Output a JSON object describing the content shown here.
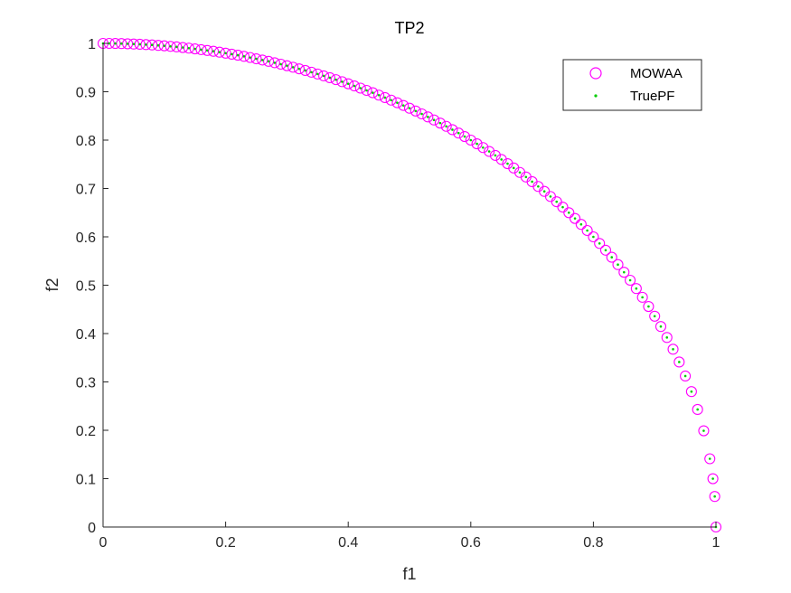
{
  "chart_data": {
    "type": "scatter",
    "title": "TP2",
    "xlabel": "f1",
    "ylabel": "f2",
    "xlim": [
      0,
      1
    ],
    "ylim": [
      0,
      1
    ],
    "xticks": [
      "0",
      "0.2",
      "0.4",
      "0.6",
      "0.8",
      "1"
    ],
    "yticks": [
      "0",
      "0.1",
      "0.2",
      "0.3",
      "0.4",
      "0.5",
      "0.6",
      "0.7",
      "0.8",
      "0.9",
      "1"
    ],
    "grid": false,
    "legend_position": "top-right",
    "series": [
      {
        "name": "MOWAA",
        "marker": "circle-open",
        "color": "#ff00ff",
        "x": [
          0.0,
          0.01,
          0.02,
          0.03,
          0.04,
          0.05,
          0.06,
          0.07,
          0.08,
          0.09,
          0.1,
          0.11,
          0.12,
          0.13,
          0.14,
          0.15,
          0.16,
          0.17,
          0.18,
          0.19,
          0.2,
          0.21,
          0.22,
          0.23,
          0.24,
          0.25,
          0.26,
          0.27,
          0.28,
          0.29,
          0.3,
          0.31,
          0.32,
          0.33,
          0.34,
          0.35,
          0.36,
          0.37,
          0.38,
          0.39,
          0.4,
          0.41,
          0.42,
          0.43,
          0.44,
          0.45,
          0.46,
          0.47,
          0.48,
          0.49,
          0.5,
          0.51,
          0.52,
          0.53,
          0.54,
          0.55,
          0.56,
          0.57,
          0.58,
          0.59,
          0.6,
          0.61,
          0.62,
          0.63,
          0.64,
          0.65,
          0.66,
          0.67,
          0.68,
          0.69,
          0.7,
          0.71,
          0.72,
          0.73,
          0.74,
          0.75,
          0.76,
          0.77,
          0.78,
          0.79,
          0.8,
          0.81,
          0.82,
          0.83,
          0.84,
          0.85,
          0.86,
          0.87,
          0.88,
          0.89,
          0.9,
          0.91,
          0.92,
          0.93,
          0.94,
          0.95,
          0.96,
          0.97,
          0.98,
          0.99,
          0.995,
          0.998,
          1.0
        ],
        "y": [
          1.0,
          1.0,
          0.9998,
          0.9996,
          0.9992,
          0.9987,
          0.9982,
          0.9975,
          0.9968,
          0.9959,
          0.995,
          0.9939,
          0.9928,
          0.9915,
          0.9902,
          0.9887,
          0.9871,
          0.9854,
          0.9837,
          0.9818,
          0.9798,
          0.9777,
          0.9755,
          0.9732,
          0.9708,
          0.9682,
          0.9656,
          0.9629,
          0.96,
          0.957,
          0.9539,
          0.9507,
          0.9474,
          0.944,
          0.9404,
          0.9367,
          0.9329,
          0.929,
          0.925,
          0.9208,
          0.9165,
          0.9121,
          0.9075,
          0.9028,
          0.898,
          0.893,
          0.8879,
          0.8827,
          0.8773,
          0.8717,
          0.866,
          0.8602,
          0.8542,
          0.848,
          0.8417,
          0.8352,
          0.8285,
          0.8216,
          0.8146,
          0.8074,
          0.8,
          0.7924,
          0.7846,
          0.7766,
          0.7684,
          0.76,
          0.7513,
          0.7424,
          0.7332,
          0.7238,
          0.7141,
          0.7042,
          0.694,
          0.6834,
          0.6726,
          0.6614,
          0.6499,
          0.638,
          0.6258,
          0.6131,
          0.6,
          0.5864,
          0.5724,
          0.5578,
          0.5426,
          0.5268,
          0.5103,
          0.4931,
          0.475,
          0.456,
          0.4359,
          0.4146,
          0.3919,
          0.3676,
          0.3412,
          0.3122,
          0.28,
          0.2431,
          0.199,
          0.1411,
          0.0999,
          0.0632,
          0.0
        ]
      },
      {
        "name": "TruePF",
        "marker": "dot",
        "color": "#00cc00",
        "x": [
          0.0,
          0.01,
          0.02,
          0.03,
          0.04,
          0.05,
          0.06,
          0.07,
          0.08,
          0.09,
          0.1,
          0.11,
          0.12,
          0.13,
          0.14,
          0.15,
          0.16,
          0.17,
          0.18,
          0.19,
          0.2,
          0.21,
          0.22,
          0.23,
          0.24,
          0.25,
          0.26,
          0.27,
          0.28,
          0.29,
          0.3,
          0.31,
          0.32,
          0.33,
          0.34,
          0.35,
          0.36,
          0.37,
          0.38,
          0.39,
          0.4,
          0.41,
          0.42,
          0.43,
          0.44,
          0.45,
          0.46,
          0.47,
          0.48,
          0.49,
          0.5,
          0.51,
          0.52,
          0.53,
          0.54,
          0.55,
          0.56,
          0.57,
          0.58,
          0.59,
          0.6,
          0.61,
          0.62,
          0.63,
          0.64,
          0.65,
          0.66,
          0.67,
          0.68,
          0.69,
          0.7,
          0.71,
          0.72,
          0.73,
          0.74,
          0.75,
          0.76,
          0.77,
          0.78,
          0.79,
          0.8,
          0.81,
          0.82,
          0.83,
          0.84,
          0.85,
          0.86,
          0.87,
          0.88,
          0.89,
          0.9,
          0.91,
          0.92,
          0.93,
          0.94,
          0.95,
          0.96,
          0.97,
          0.98,
          0.99,
          0.995,
          0.998,
          1.0
        ],
        "y": [
          1.0,
          1.0,
          0.9998,
          0.9996,
          0.9992,
          0.9987,
          0.9982,
          0.9975,
          0.9968,
          0.9959,
          0.995,
          0.9939,
          0.9928,
          0.9915,
          0.9902,
          0.9887,
          0.9871,
          0.9854,
          0.9837,
          0.9818,
          0.9798,
          0.9777,
          0.9755,
          0.9732,
          0.9708,
          0.9682,
          0.9656,
          0.9629,
          0.96,
          0.957,
          0.9539,
          0.9507,
          0.9474,
          0.944,
          0.9404,
          0.9367,
          0.9329,
          0.929,
          0.925,
          0.9208,
          0.9165,
          0.9121,
          0.9075,
          0.9028,
          0.898,
          0.893,
          0.8879,
          0.8827,
          0.8773,
          0.8717,
          0.866,
          0.8602,
          0.8542,
          0.848,
          0.8417,
          0.8352,
          0.8285,
          0.8216,
          0.8146,
          0.8074,
          0.8,
          0.7924,
          0.7846,
          0.7766,
          0.7684,
          0.76,
          0.7513,
          0.7424,
          0.7332,
          0.7238,
          0.7141,
          0.7042,
          0.694,
          0.6834,
          0.6726,
          0.6614,
          0.6499,
          0.638,
          0.6258,
          0.6131,
          0.6,
          0.5864,
          0.5724,
          0.5578,
          0.5426,
          0.5268,
          0.5103,
          0.4931,
          0.475,
          0.456,
          0.4359,
          0.4146,
          0.3919,
          0.3676,
          0.3412,
          0.3122,
          0.28,
          0.2431,
          0.199,
          0.1411,
          0.0999,
          0.0632,
          0.0
        ]
      }
    ]
  }
}
